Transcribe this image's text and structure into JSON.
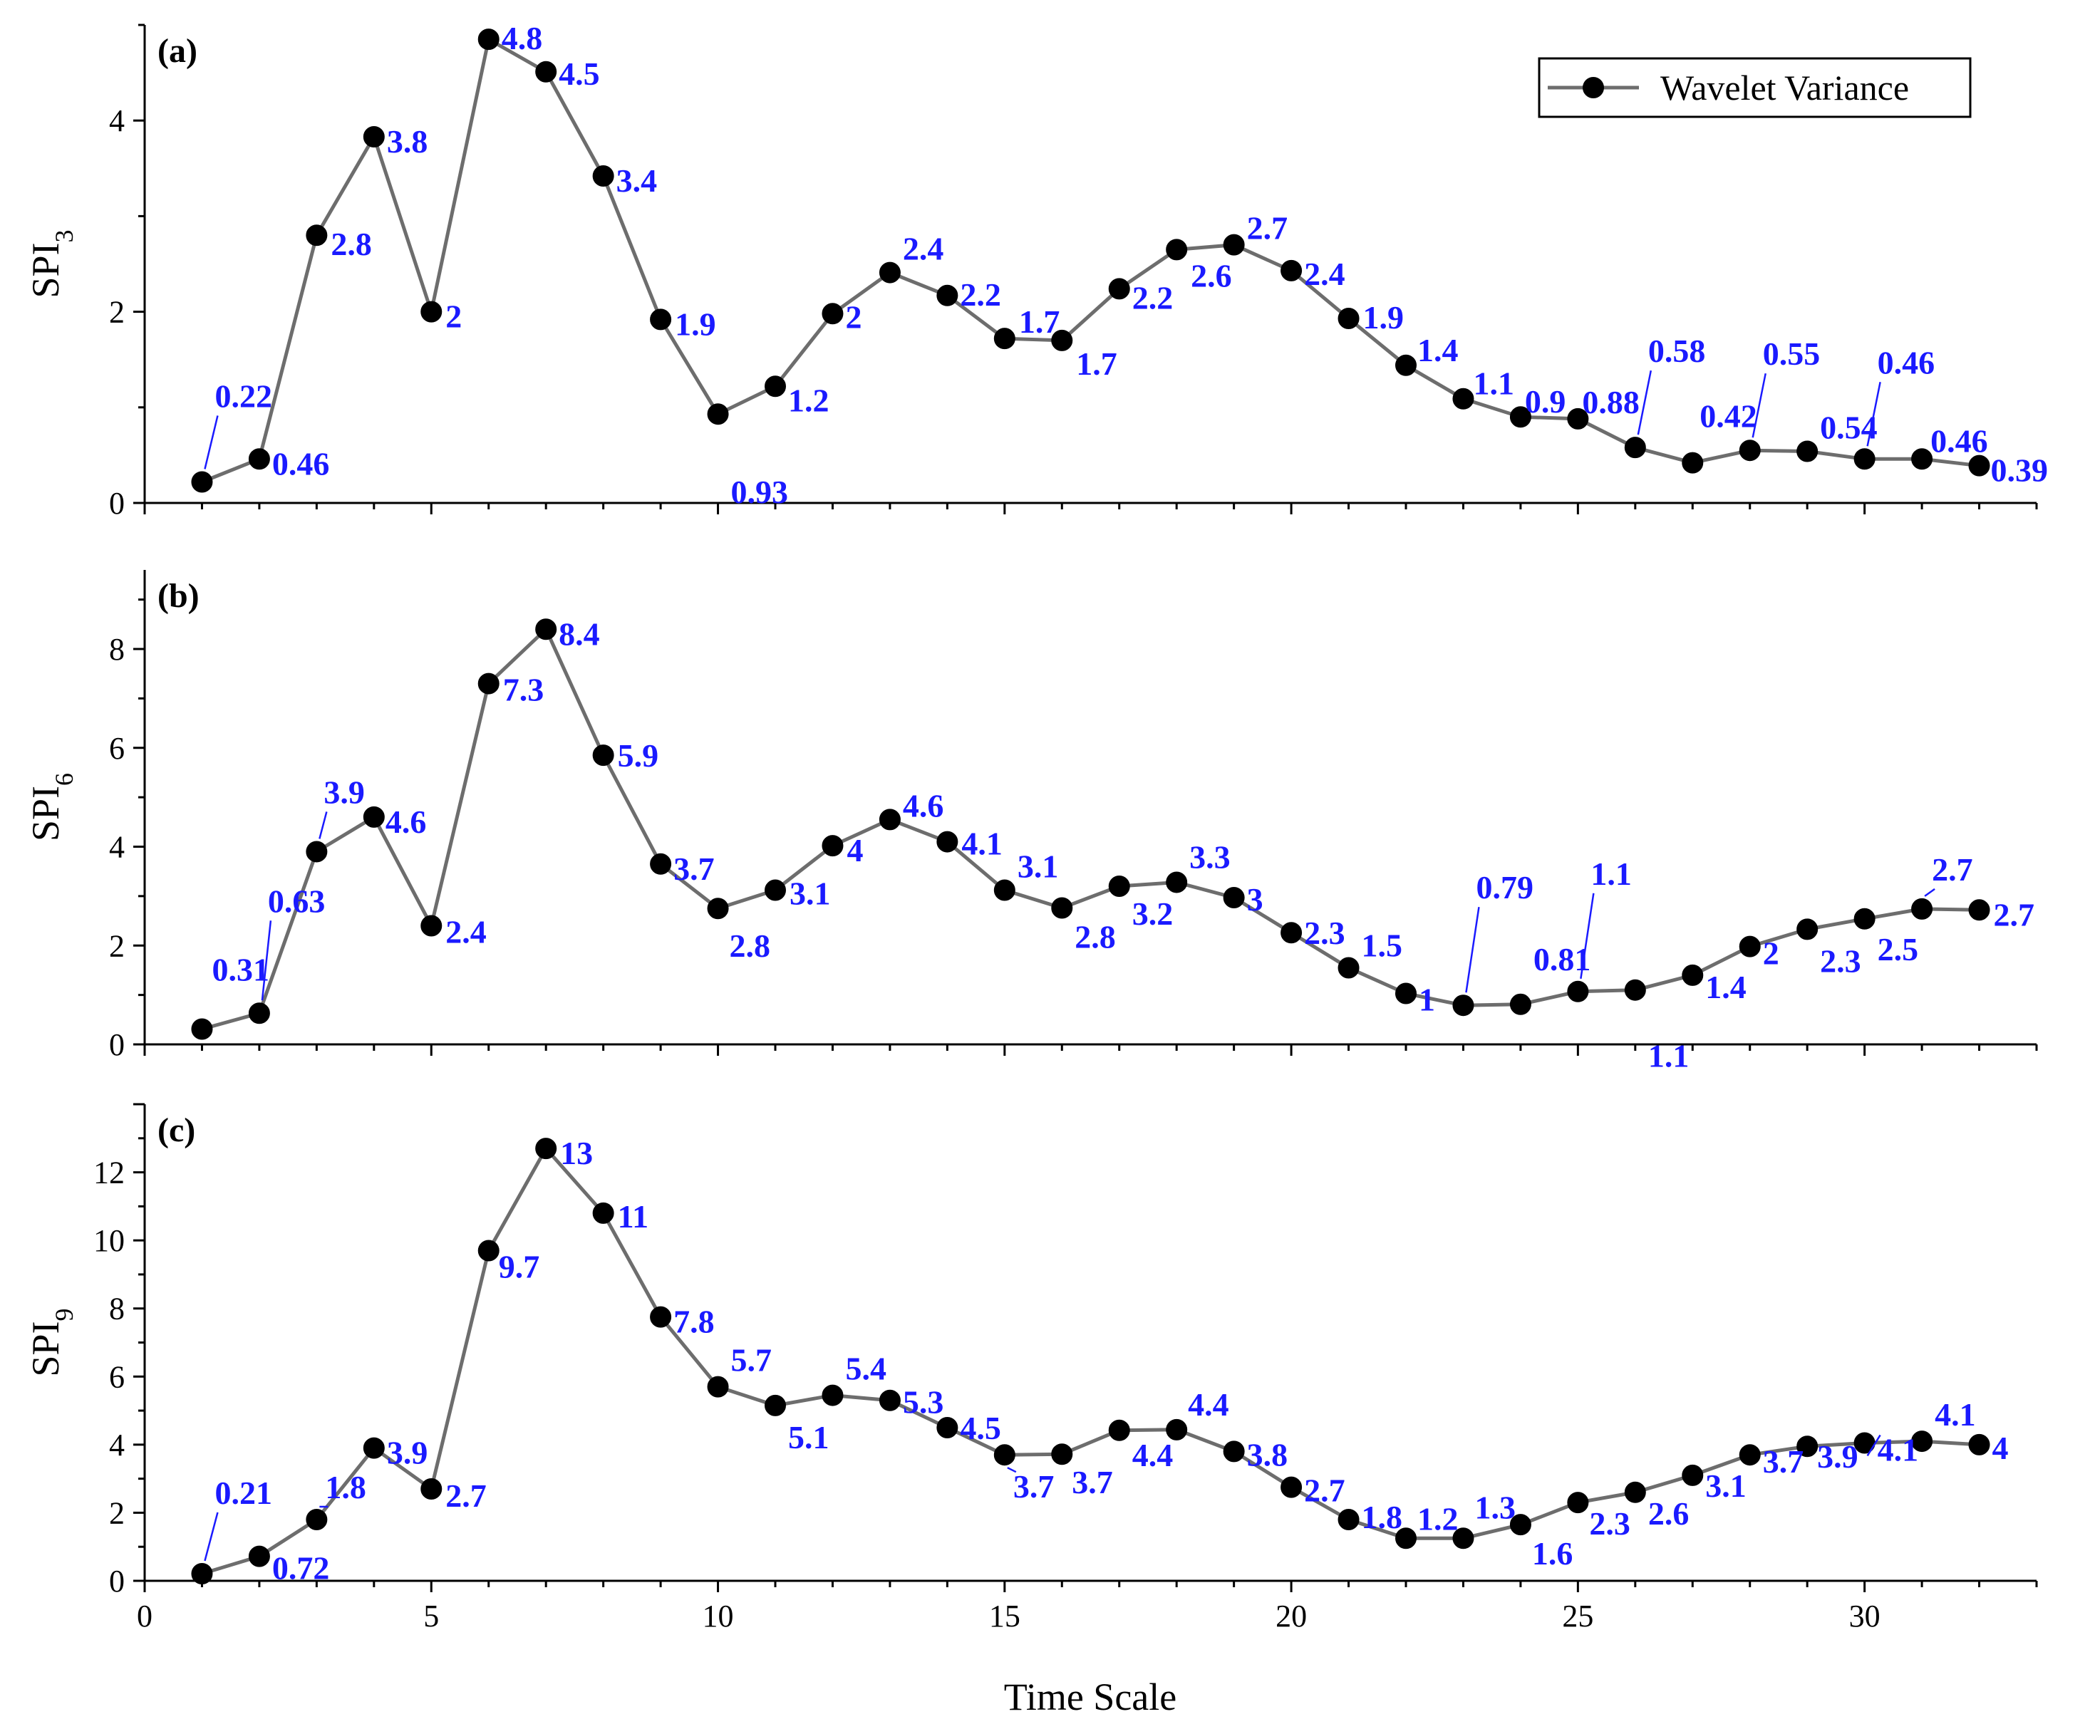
{
  "chart_data": [
    {
      "type": "line",
      "panel_tag": "(a)",
      "ylabel": "SPI",
      "ylabel_sub": "3",
      "xlabel": "",
      "xlim": [
        0,
        33
      ],
      "ylim": [
        0,
        5.0
      ],
      "yticks": [
        0,
        2,
        4
      ],
      "ytick_labels": [
        "0",
        "2",
        "4"
      ],
      "xticks": [
        0,
        5,
        10,
        15,
        20,
        25,
        30
      ],
      "xtick_labels": [],
      "legend": {
        "label": "Wavelet Variance",
        "position": "top-right"
      },
      "x": [
        1,
        2,
        3,
        4,
        5,
        6,
        7,
        8,
        9,
        10,
        11,
        12,
        13,
        14,
        15,
        16,
        17,
        18,
        19,
        20,
        21,
        22,
        23,
        24,
        25,
        26,
        27,
        28,
        29,
        30,
        31,
        32
      ],
      "series": [
        {
          "name": "Wavelet Variance",
          "values": [
            0.22,
            0.46,
            2.8,
            3.83,
            2.0,
            4.85,
            4.51,
            3.42,
            1.92,
            0.93,
            1.22,
            1.98,
            2.41,
            2.17,
            1.72,
            1.7,
            2.24,
            2.65,
            2.7,
            2.43,
            1.93,
            1.44,
            1.09,
            0.9,
            0.88,
            0.58,
            0.42,
            0.55,
            0.54,
            0.46,
            0.46,
            0.39
          ],
          "data_labels": [
            "0.22",
            "0.46",
            "2.8",
            "3.8",
            "2",
            "4.8",
            "4.5",
            "3.4",
            "1.9",
            "0.93",
            "1.2",
            "2",
            "2.4",
            "2.2",
            "1.7",
            "1.7",
            "2.2",
            "2.6",
            "2.7",
            "2.4",
            "1.9",
            "1.4",
            "1.1",
            "0.9",
            "0.88",
            "0.58",
            "0.42",
            "0.55",
            "0.54",
            "0.46",
            "0.46",
            "0.39"
          ]
        }
      ]
    },
    {
      "type": "line",
      "panel_tag": "(b)",
      "ylabel": "SPI",
      "ylabel_sub": "6",
      "xlabel": "",
      "xlim": [
        0,
        33
      ],
      "ylim": [
        0,
        9.6
      ],
      "yticks": [
        0,
        2,
        4,
        6,
        8
      ],
      "ytick_labels": [
        "0",
        "2",
        "4",
        "6",
        "8"
      ],
      "xticks": [
        0,
        5,
        10,
        15,
        20,
        25,
        30
      ],
      "xtick_labels": [],
      "x": [
        1,
        2,
        3,
        4,
        5,
        6,
        7,
        8,
        9,
        10,
        11,
        12,
        13,
        14,
        15,
        16,
        17,
        18,
        19,
        20,
        21,
        22,
        23,
        24,
        25,
        26,
        27,
        28,
        29,
        30,
        31,
        32
      ],
      "series": [
        {
          "name": "Wavelet Variance",
          "values": [
            0.31,
            0.63,
            3.9,
            4.6,
            2.4,
            7.3,
            8.4,
            5.85,
            3.65,
            2.75,
            3.12,
            4.02,
            4.55,
            4.1,
            3.12,
            2.76,
            3.2,
            3.28,
            2.97,
            2.26,
            1.55,
            1.03,
            0.79,
            0.81,
            1.07,
            1.1,
            1.4,
            1.98,
            2.33,
            2.54,
            2.74,
            2.72
          ],
          "data_labels": [
            "0.31",
            "0.63",
            "3.9",
            "4.6",
            "2.4",
            "7.3",
            "8.4",
            "5.9",
            "3.7",
            "2.8",
            "3.1",
            "4",
            "4.6",
            "4.1",
            "3.1",
            "2.8",
            "3.2",
            "3.3",
            "3",
            "2.3",
            "1.5",
            "1",
            "0.79",
            "0.81",
            "1.1",
            "1.1",
            "1.4",
            "2",
            "2.3",
            "2.5",
            "2.7",
            "2.7"
          ]
        }
      ]
    },
    {
      "type": "line",
      "panel_tag": "(c)",
      "ylabel": "SPI",
      "ylabel_sub": "9",
      "xlabel": "Time Scale",
      "xlim": [
        0,
        33
      ],
      "ylim": [
        0,
        14
      ],
      "yticks": [
        0,
        2,
        4,
        6,
        8,
        10,
        12
      ],
      "ytick_labels": [
        "0",
        "2",
        "4",
        "6",
        "8",
        "10",
        "12"
      ],
      "xticks": [
        0,
        5,
        10,
        15,
        20,
        25,
        30
      ],
      "xtick_labels": [
        "0",
        "5",
        "10",
        "15",
        "20",
        "25",
        "30"
      ],
      "x": [
        1,
        2,
        3,
        4,
        5,
        6,
        7,
        8,
        9,
        10,
        11,
        12,
        13,
        14,
        15,
        16,
        17,
        18,
        19,
        20,
        21,
        22,
        23,
        24,
        25,
        26,
        27,
        28,
        29,
        30,
        31,
        32
      ],
      "series": [
        {
          "name": "Wavelet Variance",
          "values": [
            0.21,
            0.72,
            1.8,
            3.9,
            2.7,
            9.7,
            12.7,
            10.8,
            7.75,
            5.7,
            5.15,
            5.45,
            5.3,
            4.5,
            3.7,
            3.72,
            4.42,
            4.44,
            3.8,
            2.75,
            1.8,
            1.25,
            1.25,
            1.65,
            2.3,
            2.6,
            3.1,
            3.7,
            3.95,
            4.05,
            4.1,
            4.0
          ],
          "data_labels": [
            "0.21",
            "0.72",
            "1.8",
            "3.9",
            "2.7",
            "9.7",
            "13",
            "11",
            "7.8",
            "5.7",
            "5.1",
            "5.4",
            "5.3",
            "4.5",
            "3.7",
            "3.7",
            "4.4",
            "4.4",
            "3.8",
            "2.7",
            "1.8",
            "1.2",
            "1.3",
            "1.6",
            "2.3",
            "2.6",
            "3.1",
            "3.7",
            "3.9",
            "4.1",
            "4.1",
            "4"
          ]
        }
      ]
    }
  ],
  "colors": {
    "line": "#6d6d6d",
    "marker": "#000000",
    "data_label": "#1a1aff",
    "axis": "#000000"
  }
}
